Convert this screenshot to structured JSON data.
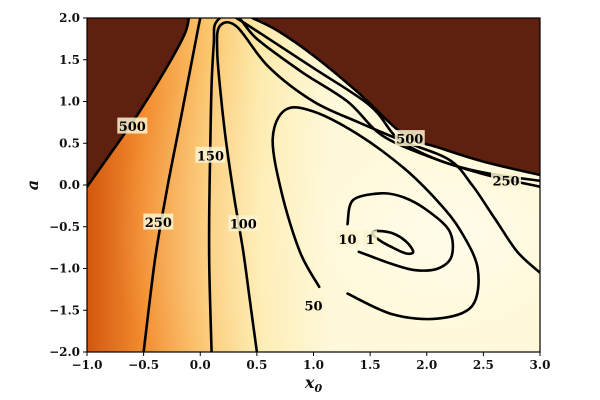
{
  "chart_data": {
    "type": "contour",
    "title": "",
    "xlabel": "x",
    "xlabel_sub": "0",
    "ylabel": "a",
    "xlim": [
      -1.0,
      3.0
    ],
    "ylim": [
      -2.0,
      2.0
    ],
    "x_ticks": [
      -1.0,
      -0.5,
      0.0,
      0.5,
      1.0,
      1.5,
      2.0,
      2.5,
      3.0
    ],
    "y_ticks": [
      -2.0,
      -1.5,
      -1.0,
      -0.5,
      0.0,
      0.5,
      1.0,
      1.5,
      2.0
    ],
    "x_tick_labels": [
      "−1.0",
      "−0.5",
      "0.0",
      "0.5",
      "1.0",
      "1.5",
      "2.0",
      "2.5",
      "3.0"
    ],
    "y_tick_labels": [
      "−2.0",
      "−1.5",
      "−1.0",
      "−0.5",
      "0.0",
      "0.5",
      "1.0",
      "1.5",
      "2.0"
    ],
    "grid": false,
    "colormap": "YlOrBr",
    "colormap_colors": [
      "#fffbe0",
      "#fde9a8",
      "#fbc36a",
      "#f28a2c",
      "#d2570f",
      "#9c3a0b",
      "#5e2110"
    ],
    "contour_color": "#000000",
    "levels": [
      {
        "value": 1,
        "label": "1",
        "label_at": [
          1.5,
          -0.65
        ],
        "points": [
          [
            1.56,
            -0.55
          ],
          [
            1.7,
            -0.58
          ],
          [
            1.82,
            -0.68
          ],
          [
            1.88,
            -0.8
          ],
          [
            1.82,
            -0.82
          ],
          [
            1.7,
            -0.75
          ],
          [
            1.58,
            -0.66
          ],
          [
            1.52,
            -0.58
          ],
          [
            1.56,
            -0.55
          ]
        ]
      },
      {
        "value": 10,
        "label": "10",
        "label_at": [
          1.3,
          -0.65
        ],
        "points": [
          [
            1.3,
            -0.47
          ],
          [
            1.35,
            -0.18
          ],
          [
            1.6,
            -0.1
          ],
          [
            1.8,
            -0.15
          ],
          [
            2.0,
            -0.3
          ],
          [
            2.2,
            -0.55
          ],
          [
            2.22,
            -0.85
          ],
          [
            2.1,
            -1.0
          ],
          [
            1.9,
            -1.02
          ],
          [
            1.7,
            -0.95
          ],
          [
            1.5,
            -0.85
          ],
          [
            1.4,
            -0.8
          ]
        ]
      },
      {
        "value": 50,
        "label": "50",
        "label_at": [
          1.0,
          -1.45
        ],
        "points": [
          [
            1.05,
            -1.22
          ],
          [
            0.88,
            -0.8
          ],
          [
            0.72,
            -0.1
          ],
          [
            0.64,
            0.55
          ],
          [
            0.75,
            0.9
          ],
          [
            1.0,
            0.88
          ],
          [
            1.4,
            0.6
          ],
          [
            1.8,
            0.2
          ],
          [
            2.1,
            -0.2
          ],
          [
            2.3,
            -0.55
          ],
          [
            2.45,
            -1.0
          ],
          [
            2.4,
            -1.45
          ],
          [
            2.1,
            -1.6
          ],
          [
            1.7,
            -1.55
          ],
          [
            1.3,
            -1.3
          ]
        ]
      },
      {
        "value": 100,
        "label": "100",
        "label_at": [
          0.38,
          -0.47
        ],
        "points": [
          [
            0.5,
            -2.0
          ],
          [
            0.44,
            -1.4
          ],
          [
            0.38,
            -0.8
          ],
          [
            0.3,
            -0.15
          ],
          [
            0.23,
            0.5
          ],
          [
            0.18,
            1.1
          ],
          [
            0.15,
            1.6
          ],
          [
            0.17,
            1.9
          ],
          [
            0.32,
            1.9
          ],
          [
            0.6,
            1.42
          ],
          [
            1.0,
            1.0
          ],
          [
            1.4,
            0.75
          ],
          [
            1.8,
            0.52
          ],
          [
            2.2,
            0.3
          ],
          [
            2.4,
            0.0
          ],
          [
            2.6,
            -0.4
          ],
          [
            2.8,
            -0.8
          ],
          [
            3.0,
            -1.05
          ]
        ]
      },
      {
        "value": 150,
        "label": "150",
        "label_at": [
          0.09,
          0.35
        ],
        "points": [
          [
            0.1,
            -2.0
          ],
          [
            0.08,
            -1.0
          ],
          [
            0.08,
            -0.25
          ],
          [
            0.09,
            0.55
          ],
          [
            0.1,
            1.2
          ],
          [
            0.12,
            1.7
          ],
          [
            0.14,
            1.95
          ],
          [
            0.3,
            2.05
          ],
          [
            0.5,
            1.75
          ],
          [
            0.9,
            1.35
          ],
          [
            1.3,
            1.0
          ],
          [
            1.6,
            0.6
          ],
          [
            2.0,
            0.35
          ],
          [
            2.5,
            0.13
          ],
          [
            3.0,
            -0.02
          ]
        ]
      },
      {
        "value": 250,
        "label": "250",
        "label_at": [
          -0.37,
          -0.45
        ],
        "points": [
          [
            -0.5,
            -2.0
          ],
          [
            -0.4,
            -0.9
          ],
          [
            -0.3,
            -0.1
          ],
          [
            -0.2,
            0.6
          ],
          [
            -0.1,
            1.3
          ],
          [
            -0.03,
            1.8
          ],
          [
            0.0,
            2.0
          ]
        ]
      },
      {
        "value": 250,
        "label": "250",
        "label_at": [
          2.7,
          0.05
        ],
        "points": [
          [
            0.32,
            2.0
          ],
          [
            0.55,
            1.8
          ],
          [
            1.0,
            1.4
          ],
          [
            1.5,
            0.95
          ],
          [
            1.75,
            0.55
          ],
          [
            2.1,
            0.3
          ],
          [
            2.5,
            0.15
          ],
          [
            3.0,
            0.05
          ]
        ]
      },
      {
        "value": 500,
        "label": "500",
        "label_at": [
          -0.6,
          0.7
        ],
        "points": [
          [
            -1.0,
            -0.02
          ],
          [
            -0.78,
            0.4
          ],
          [
            -0.55,
            0.85
          ],
          [
            -0.3,
            1.4
          ],
          [
            -0.14,
            1.8
          ],
          [
            -0.1,
            2.0
          ]
        ]
      },
      {
        "value": 500,
        "label": "500",
        "label_at": [
          1.85,
          0.55
        ],
        "points": [
          [
            0.46,
            2.0
          ],
          [
            0.68,
            1.85
          ],
          [
            1.0,
            1.55
          ],
          [
            1.4,
            1.1
          ],
          [
            1.8,
            0.6
          ],
          [
            2.1,
            0.45
          ],
          [
            2.5,
            0.28
          ],
          [
            3.0,
            0.12
          ]
        ]
      }
    ]
  }
}
